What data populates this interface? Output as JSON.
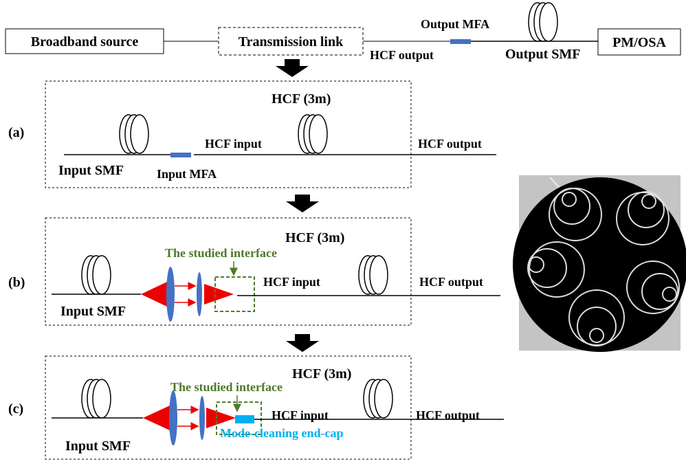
{
  "top": {
    "source": "Broadband  source",
    "link": "Transmission link",
    "meter": "PM/OSA",
    "output_mfa": "Output MFA",
    "hcf_output": "HCF output",
    "output_smf": "Output SMF"
  },
  "panels": [
    {
      "label": "(a)",
      "fiber": "HCF (3m)",
      "hcf_input": "HCF input",
      "hcf_output": "HCF output",
      "input_smf": "Input SMF",
      "input_mfa": "Input MFA"
    },
    {
      "label": "(b)",
      "fiber": "HCF (3m)",
      "interface": "The studied interface",
      "hcf_input": "HCF input",
      "hcf_output": "HCF output",
      "input_smf": "Input SMF"
    },
    {
      "label": "(c)",
      "fiber": "HCF (3m)",
      "interface": "The studied interface",
      "hcf_input": "HCF input",
      "hcf_output": "HCF output",
      "input_smf": "Input SMF",
      "end_cap": "Mode-cleaning end-cap"
    }
  ]
}
